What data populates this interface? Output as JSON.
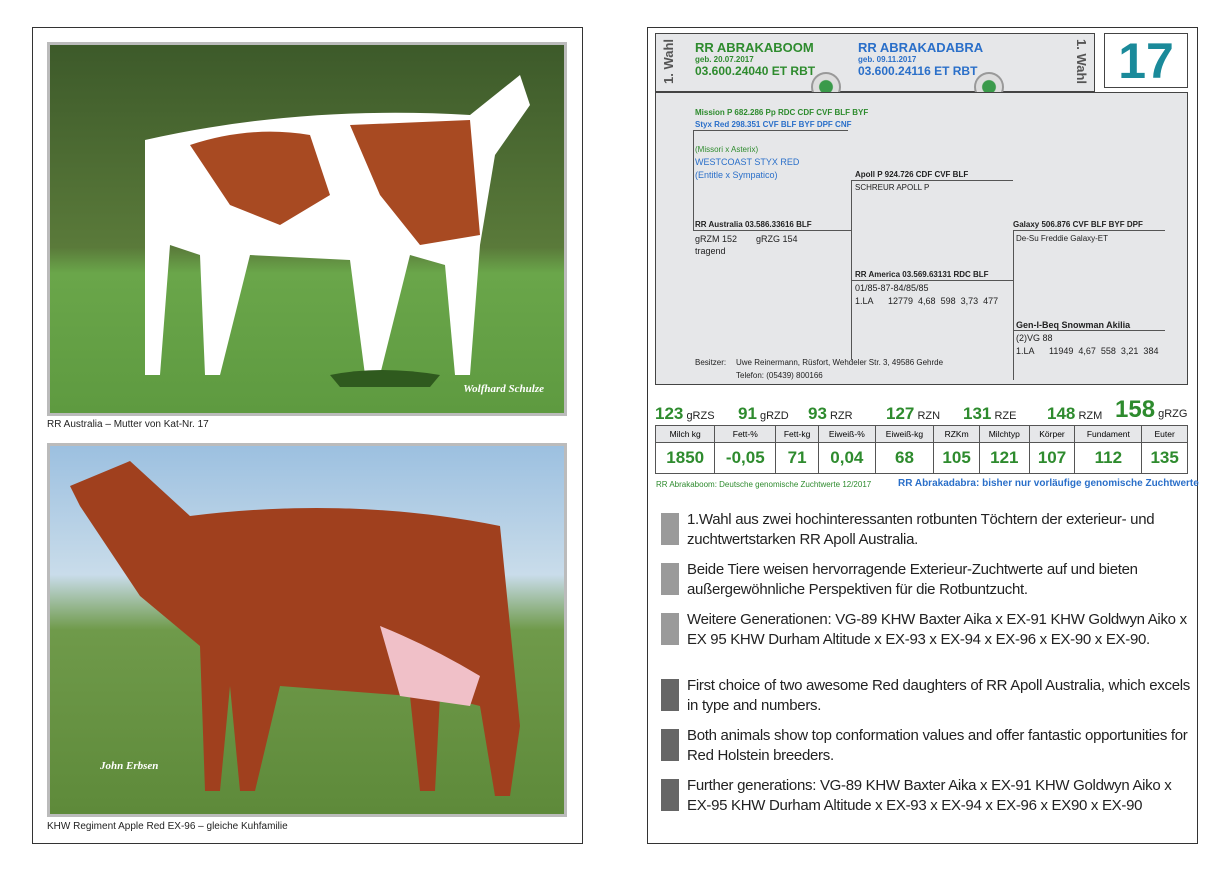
{
  "left": {
    "photo1_credit": "Wolfhard Schulze",
    "caption1": "RR Australia – Mutter von Kat-Nr. 17",
    "photo2_credit": "John Erbsen",
    "caption2": "KHW Regiment Apple Red EX-96 – gleiche Kuhfamilie"
  },
  "header": {
    "wahl_label": "1. Wahl",
    "number": "17",
    "animal1": {
      "name": "RR ABRAKABOOM",
      "born": "geb. 20.07.2017",
      "id": "03.600.24040 ET RBT"
    },
    "animal2": {
      "name": "RR ABRAKADABRA",
      "born": "geb. 09.11.2017",
      "id": "03.600.24116 ET RBT"
    }
  },
  "pedigree": {
    "sire1": "Mission P 682.286 Pp RDC CDF CVF BLF BYF",
    "sire2": "Styx Red 298.351 CVF BLF BYF DPF CNF",
    "sire1_parents": "(Missori x Asterix)",
    "sire2_full": "WESTCOAST STYX RED",
    "sire2_parents": "(Entitle x Sympatico)",
    "dam": "RR Australia 03.586.33616 BLF",
    "dam_grzm": "gRZM 152",
    "dam_grzg": "gRZG 154",
    "dam_status": "tragend",
    "mgs": "Apoll P 924.726 CDF CVF BLF",
    "mgs_full": "SCHREUR APOLL P",
    "mgd": "RR America 03.569.63131 RDC BLF",
    "mgd_line1": "01/85-87-84/85/85",
    "mgd_line2": "1.LA      12779  4,68  598  3,73  477",
    "mgd_sire": "Galaxy 506.876 CVF BLF BYF DPF",
    "mgd_sire_full": "De-Su Freddie Galaxy-ET",
    "mgd_dam": "Gen-I-Beq Snowman Akilia",
    "mgd_dam_line1": "(2)VG 88",
    "mgd_dam_line2": "1.LA      11949  4,67  558  3,21  384",
    "owner_label": "Besitzer:",
    "owner": "Uwe Reinermann, Rüsfort, Wehdeler Str. 3, 49586 Gehrde",
    "phone": "Telefon: (05439) 800166"
  },
  "scores": [
    {
      "v": "123",
      "l": "gRZS"
    },
    {
      "v": "91",
      "l": "gRZD"
    },
    {
      "v": "93",
      "l": "RZR"
    },
    {
      "v": "127",
      "l": "RZN"
    },
    {
      "v": "131",
      "l": "RZE"
    },
    {
      "v": "148",
      "l": "RZM"
    },
    {
      "v": "158",
      "l": "gRZG"
    }
  ],
  "table": {
    "headers": [
      "Milch kg",
      "Fett-%",
      "Fett-kg",
      "Eiweiß-%",
      "Eiweiß-kg",
      "RZKm",
      "Milchtyp",
      "Körper",
      "Fundament",
      "Euter"
    ],
    "values": [
      "1850",
      "-0,05",
      "71",
      "0,04",
      "68",
      "105",
      "121",
      "107",
      "112",
      "135"
    ]
  },
  "note_green": "RR Abrakaboom: Deutsche genomische Zuchtwerte 12/2017",
  "note_blue": "RR Abrakadabra: bisher nur vorläufige genomische Zuchtwerte",
  "bullets": [
    "1.Wahl aus zwei hochinteressanten rotbunten Töchtern der exterieur- und zuchtwertstarken RR Apoll Australia.",
    "Beide Tiere weisen hervorragende Exterieur-Zuchtwerte auf und bieten außergewöhnliche Perspektiven für die Rotbuntzucht.",
    "Weitere Generationen: VG-89  KHW Baxter Aika x EX-91 KHW Goldwyn Aiko x EX 95 KHW Durham Altitude x EX-93 x EX-94 x EX-96 x EX-90 x EX-90.",
    "First choice of two awesome Red daughters of RR Apoll Australia,  which excels in type and numbers.",
    "Both animals show top conformation values and offer fantastic opportunities for Red Holstein breeders.",
    "Further generations: VG-89 KHW Baxter Aika x EX-91 KHW Goldwyn Aiko x EX-95 KHW Durham Altitude x EX-93 x EX-94 x EX-96 x EX90 x EX-90"
  ],
  "colors": {
    "green": "#2e8b2e",
    "blue": "#2a6fc9",
    "number": "#1a8a9a",
    "panel": "#e6e7e9"
  }
}
